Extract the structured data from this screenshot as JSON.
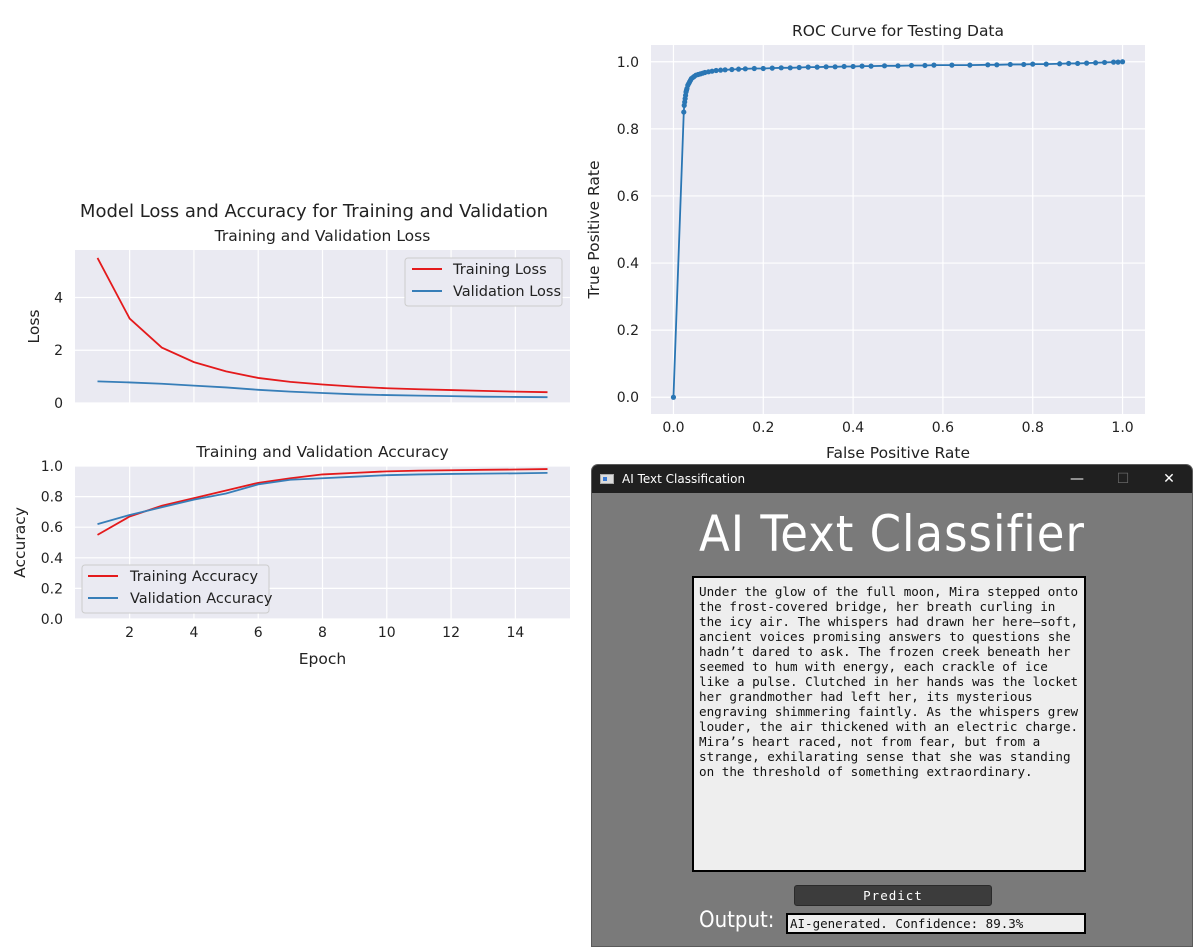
{
  "figure": {
    "suptitle": "Model Loss and Accuracy for Training and Validation"
  },
  "chart_data": [
    {
      "type": "line",
      "title": "Training and Validation Loss",
      "xlabel": "",
      "ylabel": "Loss",
      "xlim": [
        0.3,
        15.7
      ],
      "ylim": [
        0,
        5.8
      ],
      "yticks": [
        0,
        2,
        4
      ],
      "legend": "top-right",
      "grid": true,
      "x": [
        1,
        2,
        3,
        4,
        5,
        6,
        7,
        8,
        9,
        10,
        11,
        12,
        13,
        14,
        15
      ],
      "series": [
        {
          "name": "Training Loss",
          "color": "#e41a1c",
          "values": [
            5.5,
            3.2,
            2.1,
            1.55,
            1.2,
            0.95,
            0.8,
            0.7,
            0.62,
            0.56,
            0.52,
            0.49,
            0.46,
            0.43,
            0.41
          ]
        },
        {
          "name": "Validation Loss",
          "color": "#377eb8",
          "values": [
            0.82,
            0.78,
            0.73,
            0.66,
            0.59,
            0.5,
            0.43,
            0.38,
            0.33,
            0.3,
            0.28,
            0.26,
            0.24,
            0.23,
            0.22
          ]
        }
      ]
    },
    {
      "type": "line",
      "title": "Training and Validation Accuracy",
      "xlabel": "Epoch",
      "ylabel": "Accuracy",
      "xlim": [
        0.3,
        15.7
      ],
      "ylim": [
        0,
        1.0
      ],
      "xticks": [
        2,
        4,
        6,
        8,
        10,
        12,
        14
      ],
      "yticks": [
        0.0,
        0.2,
        0.4,
        0.6,
        0.8,
        1.0
      ],
      "legend": "bottom-left",
      "grid": true,
      "x": [
        1,
        2,
        3,
        4,
        5,
        6,
        7,
        8,
        9,
        10,
        11,
        12,
        13,
        14,
        15
      ],
      "series": [
        {
          "name": "Training Accuracy",
          "color": "#e41a1c",
          "values": [
            0.55,
            0.67,
            0.74,
            0.79,
            0.84,
            0.89,
            0.92,
            0.945,
            0.955,
            0.965,
            0.97,
            0.972,
            0.975,
            0.977,
            0.98
          ]
        },
        {
          "name": "Validation Accuracy",
          "color": "#377eb8",
          "values": [
            0.62,
            0.68,
            0.73,
            0.78,
            0.82,
            0.88,
            0.91,
            0.92,
            0.93,
            0.94,
            0.945,
            0.948,
            0.95,
            0.952,
            0.955
          ]
        }
      ]
    },
    {
      "type": "line",
      "title": "ROC Curve for Testing Data",
      "xlabel": "False Positive Rate",
      "ylabel": "True Positive Rate",
      "xlim": [
        -0.05,
        1.05
      ],
      "ylim": [
        -0.05,
        1.05
      ],
      "xticks": [
        0.0,
        0.2,
        0.4,
        0.6,
        0.8,
        1.0
      ],
      "yticks": [
        0.0,
        0.2,
        0.4,
        0.6,
        0.8,
        1.0
      ],
      "grid": true,
      "markers": true,
      "color": "#2a76b4",
      "x": [
        0,
        0.023,
        0.024,
        0.025,
        0.026,
        0.027,
        0.028,
        0.029,
        0.03,
        0.032,
        0.034,
        0.036,
        0.038,
        0.04,
        0.043,
        0.046,
        0.05,
        0.055,
        0.06,
        0.065,
        0.07,
        0.078,
        0.086,
        0.095,
        0.105,
        0.115,
        0.13,
        0.145,
        0.16,
        0.18,
        0.2,
        0.22,
        0.24,
        0.26,
        0.28,
        0.3,
        0.32,
        0.34,
        0.36,
        0.38,
        0.4,
        0.42,
        0.44,
        0.47,
        0.5,
        0.53,
        0.56,
        0.58,
        0.62,
        0.66,
        0.7,
        0.72,
        0.75,
        0.78,
        0.8,
        0.83,
        0.86,
        0.88,
        0.9,
        0.92,
        0.94,
        0.96,
        0.98,
        0.99,
        1.0
      ],
      "y": [
        0,
        0.85,
        0.87,
        0.88,
        0.89,
        0.9,
        0.91,
        0.915,
        0.92,
        0.93,
        0.935,
        0.94,
        0.945,
        0.95,
        0.953,
        0.956,
        0.96,
        0.962,
        0.964,
        0.966,
        0.968,
        0.97,
        0.972,
        0.974,
        0.975,
        0.976,
        0.977,
        0.978,
        0.979,
        0.98,
        0.98,
        0.981,
        0.982,
        0.982,
        0.983,
        0.984,
        0.984,
        0.985,
        0.985,
        0.986,
        0.986,
        0.987,
        0.987,
        0.988,
        0.988,
        0.989,
        0.989,
        0.99,
        0.99,
        0.99,
        0.991,
        0.991,
        0.992,
        0.992,
        0.993,
        0.993,
        0.994,
        0.995,
        0.995,
        0.996,
        0.997,
        0.998,
        0.999,
        0.999,
        1.0
      ]
    }
  ],
  "app": {
    "window_title": "AI Text Classification",
    "minimize": "—",
    "maximize": "☐",
    "close": "✕",
    "heading": "AI Text Classifier",
    "input_text": "Under the glow of the full moon, Mira stepped onto the frost-covered bridge, her breath curling in the icy air. The whispers had drawn her here—soft, ancient voices promising answers to questions she hadn’t dared to ask. The frozen creek beneath her seemed to hum with energy, each crackle of ice like a pulse. Clutched in her hands was the locket her grandmother had left her, its mysterious engraving shimmering faintly. As the whispers grew louder, the air thickened with an electric charge. Mira’s heart raced, not from fear, but from a strange, exhilarating sense that she was standing on the threshold of something extraordinary.",
    "predict_label": "Predict",
    "output_label": "Output:",
    "output_value": "AI-generated. Confidence: 89.3%"
  }
}
